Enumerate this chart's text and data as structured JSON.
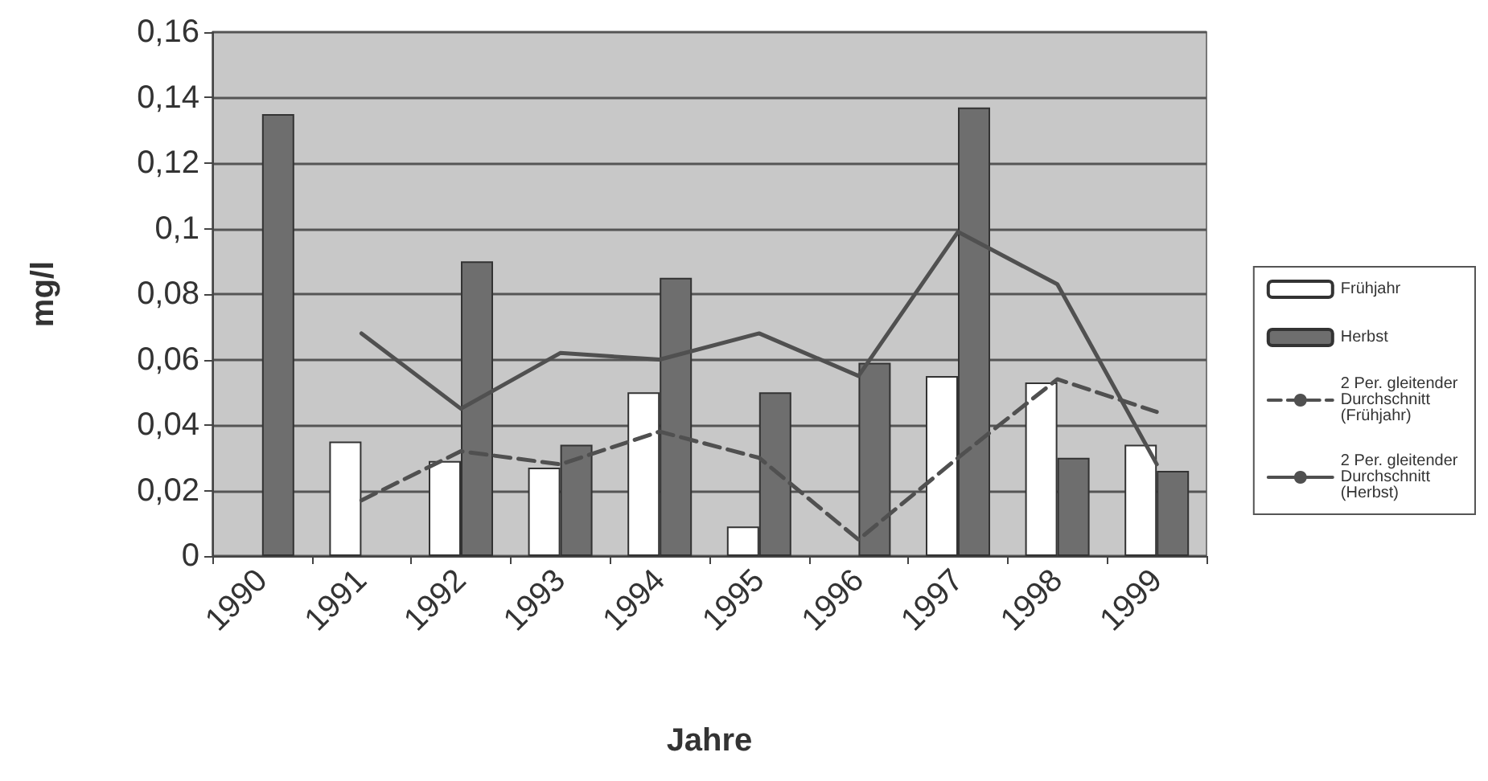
{
  "chart_data": {
    "type": "bar",
    "xlabel": "Jahre",
    "ylabel": "mg/l",
    "categories": [
      "1990",
      "1991",
      "1992",
      "1993",
      "1994",
      "1995",
      "1996",
      "1997",
      "1998",
      "1999"
    ],
    "series": [
      {
        "name": "Frühjahr",
        "color": "#ffffff",
        "values": [
          null,
          0.035,
          0.029,
          0.027,
          0.05,
          0.009,
          null,
          0.055,
          0.053,
          0.034
        ]
      },
      {
        "name": "Herbst",
        "color": "#6e6e6e",
        "values": [
          0.135,
          null,
          0.09,
          0.034,
          0.085,
          0.05,
          0.059,
          0.137,
          0.03,
          0.026
        ]
      },
      {
        "name": "2 Per. gleitender Durchschnitt (Frühjahr)",
        "type": "line",
        "line_style": "dashed",
        "color": "#505050",
        "values": [
          null,
          0.017,
          0.032,
          0.028,
          0.038,
          0.03,
          0.005,
          0.03,
          0.054,
          0.044
        ]
      },
      {
        "name": "2 Per. gleitender Durchschnitt (Herbst)",
        "type": "line",
        "line_style": "solid",
        "color": "#505050",
        "values": [
          null,
          0.068,
          0.045,
          0.062,
          0.06,
          0.068,
          0.055,
          0.099,
          0.083,
          0.028
        ]
      }
    ],
    "ylim": [
      0,
      0.16
    ],
    "yticks": [
      0,
      {
        "value": 0.02,
        "label": "0,02"
      },
      {
        "value": 0.04,
        "label": "0,04"
      },
      {
        "value": 0.06,
        "label": "0,06"
      },
      {
        "value": 0.08,
        "label": "0,08"
      },
      {
        "value": 0.1,
        "label": "0,1"
      },
      {
        "value": 0.12,
        "label": "0,12"
      },
      {
        "value": 0.14,
        "label": "0,14"
      },
      {
        "value": 0.16,
        "label": "0,16"
      }
    ],
    "grid": "y",
    "legend": "right",
    "marker": "none"
  }
}
